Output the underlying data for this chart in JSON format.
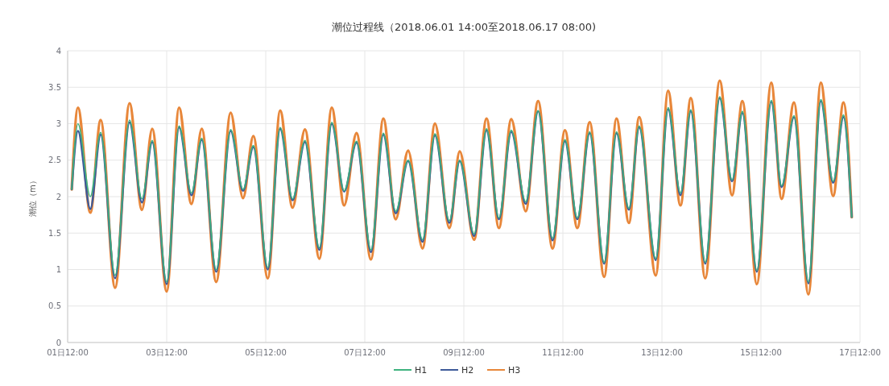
{
  "chart_data": {
    "type": "line",
    "title": "潮位过程线（2018.06.01 14:00至2018.06.17 08:00)",
    "ylabel": "潮位（m）",
    "x": [
      "2018-06-01T14:00",
      "2018-06-01T17:00",
      "2018-06-01T23:00",
      "2018-06-02T04:00",
      "2018-06-02T11:00",
      "2018-06-02T18:00",
      "2018-06-03T00:00",
      "2018-06-03T05:00",
      "2018-06-03T12:00",
      "2018-06-03T18:00",
      "2018-06-04T00:00",
      "2018-06-04T05:00",
      "2018-06-04T12:00",
      "2018-06-04T19:00",
      "2018-06-05T01:00",
      "2018-06-05T06:00",
      "2018-06-05T13:00",
      "2018-06-05T19:00",
      "2018-06-06T01:00",
      "2018-06-06T07:00",
      "2018-06-06T14:00",
      "2018-06-06T20:00",
      "2018-06-07T02:00",
      "2018-06-07T08:00",
      "2018-06-07T15:00",
      "2018-06-07T21:00",
      "2018-06-08T03:00",
      "2018-06-08T09:00",
      "2018-06-08T16:00",
      "2018-06-08T22:00",
      "2018-06-09T05:00",
      "2018-06-09T10:00",
      "2018-06-09T17:00",
      "2018-06-09T23:00",
      "2018-06-10T05:00",
      "2018-06-10T11:00",
      "2018-06-10T18:00",
      "2018-06-11T00:00",
      "2018-06-11T07:00",
      "2018-06-11T13:00",
      "2018-06-11T19:00",
      "2018-06-12T01:00",
      "2018-06-12T08:00",
      "2018-06-12T14:00",
      "2018-06-12T20:00",
      "2018-06-13T01:00",
      "2018-06-13T09:00",
      "2018-06-13T15:00",
      "2018-06-13T21:00",
      "2018-06-14T02:00",
      "2018-06-14T09:00",
      "2018-06-14T16:00",
      "2018-06-14T22:00",
      "2018-06-15T03:00",
      "2018-06-15T10:00",
      "2018-06-15T17:00",
      "2018-06-15T22:00",
      "2018-06-16T04:00",
      "2018-06-16T11:00",
      "2018-06-16T17:00",
      "2018-06-16T23:00",
      "2018-06-17T04:00",
      "2018-06-17T08:00"
    ],
    "series": [
      {
        "name": "H1",
        "color": "#3fb37f",
        "values": [
          2.1,
          3.0,
          2.0,
          2.88,
          0.92,
          3.05,
          1.97,
          2.77,
          0.83,
          2.97,
          2.05,
          2.8,
          1.0,
          2.92,
          2.1,
          2.7,
          1.03,
          2.95,
          1.97,
          2.77,
          1.3,
          3.02,
          2.08,
          2.76,
          1.27,
          2.87,
          1.8,
          2.5,
          1.41,
          2.86,
          1.67,
          2.5,
          1.49,
          2.93,
          1.71,
          2.91,
          1.93,
          3.18,
          1.43,
          2.78,
          1.71,
          2.89,
          1.1,
          2.89,
          1.84,
          2.97,
          1.15,
          3.22,
          2.05,
          3.19,
          1.1,
          3.37,
          2.23,
          3.17,
          0.99,
          3.32,
          2.15,
          3.11,
          0.83,
          3.33,
          2.21,
          3.12,
          1.72
        ]
      },
      {
        "name": "H2",
        "color": "#3d5a99",
        "values": [
          2.1,
          2.9,
          1.83,
          2.85,
          0.88,
          3.02,
          1.92,
          2.75,
          0.8,
          2.95,
          2.02,
          2.78,
          0.97,
          2.9,
          2.08,
          2.68,
          1.0,
          2.93,
          1.95,
          2.75,
          1.27,
          3.0,
          2.07,
          2.74,
          1.24,
          2.85,
          1.77,
          2.49,
          1.38,
          2.84,
          1.64,
          2.49,
          1.46,
          2.91,
          1.69,
          2.89,
          1.9,
          3.17,
          1.4,
          2.76,
          1.69,
          2.87,
          1.08,
          2.87,
          1.82,
          2.95,
          1.13,
          3.2,
          2.02,
          3.17,
          1.08,
          3.35,
          2.21,
          3.15,
          0.97,
          3.3,
          2.13,
          3.09,
          0.81,
          3.31,
          2.19,
          3.09,
          1.72
        ]
      },
      {
        "name": "H3",
        "color": "#e8873a",
        "values": [
          2.1,
          3.22,
          1.78,
          3.05,
          0.75,
          3.28,
          1.82,
          2.93,
          0.7,
          3.22,
          1.9,
          2.93,
          0.83,
          3.15,
          1.98,
          2.83,
          0.88,
          3.18,
          1.85,
          2.92,
          1.15,
          3.22,
          1.88,
          2.87,
          1.14,
          3.07,
          1.69,
          2.63,
          1.29,
          3.0,
          1.57,
          2.62,
          1.41,
          3.07,
          1.57,
          3.06,
          1.8,
          3.31,
          1.29,
          2.91,
          1.57,
          3.02,
          0.9,
          3.07,
          1.64,
          3.09,
          0.92,
          3.45,
          1.88,
          3.35,
          0.88,
          3.59,
          2.02,
          3.31,
          0.8,
          3.56,
          1.97,
          3.29,
          0.66,
          3.56,
          2.01,
          3.29,
          1.72
        ]
      }
    ],
    "xlim": [
      "2018-06-01T12:00",
      "2018-06-17T12:00"
    ],
    "xticks": [
      {
        "value": "2018-06-01T12:00",
        "label": "01日12:00"
      },
      {
        "value": "2018-06-03T12:00",
        "label": "03日12:00"
      },
      {
        "value": "2018-06-05T12:00",
        "label": "05日12:00"
      },
      {
        "value": "2018-06-07T12:00",
        "label": "07日12:00"
      },
      {
        "value": "2018-06-09T12:00",
        "label": "09日12:00"
      },
      {
        "value": "2018-06-11T12:00",
        "label": "11日12:00"
      },
      {
        "value": "2018-06-13T12:00",
        "label": "13日12:00"
      },
      {
        "value": "2018-06-15T12:00",
        "label": "15日12:00"
      },
      {
        "value": "2018-06-17T12:00",
        "label": "17日12:00"
      }
    ],
    "ylim": [
      0,
      4
    ],
    "yticks": [
      0,
      0.5,
      1,
      1.5,
      2,
      2.5,
      3,
      3.5,
      4
    ],
    "grid": true,
    "legend": "bottom",
    "line_style": "solid",
    "marker": "none"
  }
}
